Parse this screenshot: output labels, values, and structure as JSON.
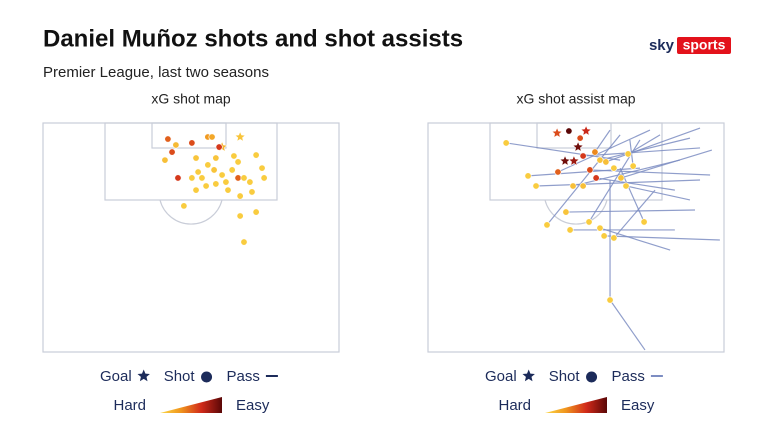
{
  "title": "Daniel Muñoz shots and shot assists",
  "subtitle": "Premier League, last two seasons",
  "logo": {
    "sky": "sky",
    "sports": "sports"
  },
  "chart_data": [
    {
      "type": "scatter",
      "title": "xG shot map",
      "xlim": [
        0,
        100
      ],
      "ylim": [
        0,
        100
      ],
      "color_scale": {
        "low": "Hard",
        "high": "Easy",
        "colors": [
          "#fbd847",
          "#f0961e",
          "#d12a1a",
          "#5a0707"
        ],
        "lim": [
          0,
          0.8
        ]
      },
      "series": [
        {
          "name": "Goal",
          "marker": "star",
          "color": "#1c2b5a",
          "x": [
            60.5,
            66.6
          ],
          "y": [
            10.5,
            6.1
          ],
          "xg": [
            0.15,
            0.08
          ]
        },
        {
          "name": "Shot",
          "marker": "circle",
          "color": "#1c2b5a",
          "x": [
            42.2,
            44.9,
            43.6,
            50.3,
            55.7,
            57.1,
            41.2,
            51.7,
            59.5,
            58.4,
            64.5,
            65.9,
            72.0,
            45.6,
            52.4,
            53.7,
            55.7,
            57.8,
            60.5,
            63.9,
            65.9,
            67.9,
            74.0,
            74.7,
            69.9,
            51.7,
            55.1,
            58.4,
            61.8,
            50.3,
            47.6,
            66.6,
            72.0,
            66.6,
            67.9,
            70.6,
            62.5
          ],
          "y": [
            7.0,
            9.6,
            12.7,
            8.7,
            6.1,
            6.1,
            16.2,
            15.3,
            10.5,
            15.3,
            14.4,
            17.0,
            14.0,
            24.0,
            21.4,
            24.0,
            18.3,
            20.5,
            22.7,
            20.5,
            24.0,
            24.0,
            19.7,
            24.0,
            25.8,
            29.3,
            27.5,
            26.6,
            25.8,
            24.0,
            36.2,
            31.9,
            38.9,
            40.6,
            52.0,
            30.1,
            29.3
          ],
          "xg": [
            0.4,
            0.12,
            0.45,
            0.45,
            0.25,
            0.2,
            0.1,
            0.08,
            0.5,
            0.08,
            0.05,
            0.05,
            0.05,
            0.5,
            0.05,
            0.05,
            0.05,
            0.08,
            0.05,
            0.05,
            0.4,
            0.05,
            0.05,
            0.05,
            0.05,
            0.05,
            0.05,
            0.05,
            0.05,
            0.05,
            0.05,
            0.05,
            0.05,
            0.05,
            0.05,
            0.05,
            0.05
          ]
        },
        {
          "name": "Pass",
          "marker": "line",
          "color": "#1c2b5a",
          "x": [],
          "y": [],
          "x_end": [],
          "y_end": []
        }
      ]
    },
    {
      "type": "scatter",
      "title": "xG shot assist map",
      "xlim": [
        0,
        100
      ],
      "ylim": [
        0,
        100
      ],
      "color_scale": {
        "low": "Hard",
        "high": "Easy",
        "colors": [
          "#fbd847",
          "#f0961e",
          "#d12a1a",
          "#5a0707"
        ],
        "lim": [
          0,
          0.8
        ]
      },
      "series": [
        {
          "name": "Goal",
          "marker": "star",
          "color": "#1c2b5a",
          "x": [
            43.6,
            53.4,
            50.7,
            46.3,
            49.3
          ],
          "y": [
            4.4,
            3.5,
            10.5,
            16.6,
            16.6
          ],
          "xg": [
            0.45,
            0.55,
            0.75,
            0.75,
            0.65
          ]
        },
        {
          "name": "Shot",
          "marker": "circle",
          "color": "#1c2b5a",
          "x": [
            47.6,
            26.4,
            51.4,
            52.4,
            56.4,
            54.7,
            56.8,
            43.9,
            33.8,
            36.5,
            49.0,
            52.4,
            58.1,
            60.1,
            62.8,
            65.2,
            66.9,
            69.3,
            67.6,
            40.2,
            46.6,
            48.0,
            54.4,
            58.1,
            59.5,
            62.8,
            73.0,
            61.5
          ],
          "y": [
            3.5,
            8.7,
            6.6,
            14.4,
            12.7,
            20.5,
            24.0,
            21.4,
            23.1,
            27.5,
            27.5,
            27.5,
            16.2,
            17.0,
            19.7,
            24.0,
            27.5,
            18.8,
            13.5,
            44.5,
            38.9,
            46.7,
            43.2,
            45.9,
            49.3,
            50.2,
            43.2,
            77.3
          ],
          "xg": [
            0.8,
            0.05,
            0.45,
            0.5,
            0.3,
            0.45,
            0.5,
            0.4,
            0.05,
            0.05,
            0.1,
            0.1,
            0.08,
            0.1,
            0.05,
            0.08,
            0.05,
            0.05,
            0.05,
            0.05,
            0.08,
            0.05,
            0.05,
            0.05,
            0.05,
            0.05,
            0.05,
            0.05
          ]
        },
        {
          "name": "Pass",
          "marker": "line",
          "color": "#7d8dc2",
          "x": [
            91.9,
            88.5,
            95.3,
            83.4,
            91.9,
            78.4,
            90.2,
            83.4,
            98.6,
            76.7,
            75.0,
            71.6,
            91.9,
            64.9,
            71.6,
            95.9,
            85.1,
            73.3,
            61.5,
            68.2,
            88.5,
            81.8,
            64.9,
            61.5,
            64.9
          ],
          "y": [
            10.9,
            6.6,
            22.7,
            29.3,
            2.2,
            5.2,
            38.0,
            46.7,
            51.1,
            29.3,
            3.1,
            19.7,
            24.9,
            19.7,
            7.4,
            11.8,
            16.2,
            99.1,
            24.9,
            7.4,
            33.6,
            55.5,
            16.2,
            3.1,
            5.2
          ],
          "x_end": [
            52.4,
            58.1,
            54.7,
            56.8,
            60.1,
            67.6,
            46.6,
            48.0,
            59.5,
            62.8,
            43.9,
            33.8,
            36.5,
            73.0,
            54.4,
            65.2,
            49.0,
            61.5,
            61.5,
            69.3,
            66.9,
            58.1,
            26.4,
            56.4,
            40.2
          ],
          "y_end": [
            14.4,
            16.2,
            20.5,
            24.0,
            17.0,
            13.5,
            38.9,
            46.7,
            49.3,
            50.2,
            21.4,
            23.1,
            27.5,
            43.2,
            43.2,
            24.0,
            27.5,
            77.3,
            77.3,
            18.8,
            27.5,
            45.9,
            8.7,
            12.7,
            44.5
          ]
        }
      ]
    }
  ]
}
